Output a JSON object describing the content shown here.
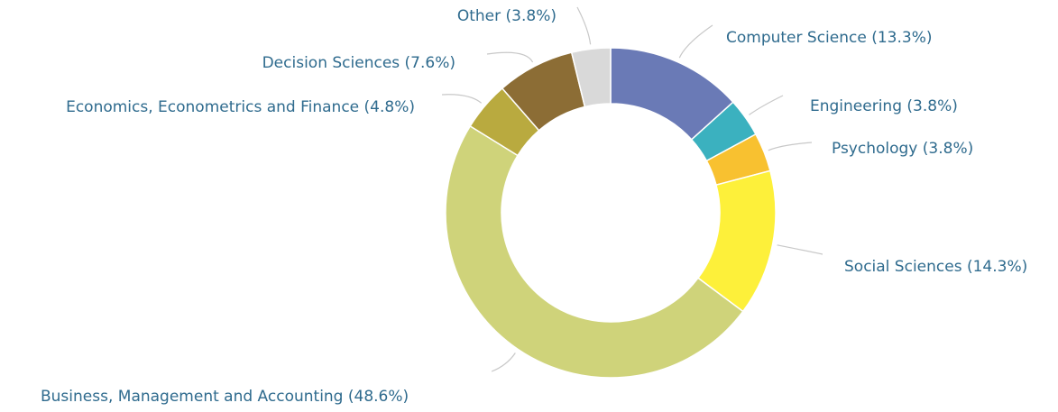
{
  "chart_data": {
    "type": "donut",
    "categories": [
      "Computer Science (13.3%)",
      "Engineering (3.8%)",
      "Psychology (3.8%)",
      "Social Sciences (14.3%)",
      "Business, Management and Accounting (48.6%)",
      "Economics, Econometrics and Finance (4.8%)",
      "Decision Sciences (7.6%)",
      "Other (3.8%)"
    ],
    "values": [
      13.3,
      3.8,
      3.8,
      14.3,
      48.6,
      4.8,
      7.6,
      3.8
    ],
    "colors": [
      "#6a7ab6",
      "#3bb1bf",
      "#f8c130",
      "#fdf03a",
      "#cfd37a",
      "#b9aa3f",
      "#8c6d35",
      "#d9d9d9"
    ]
  }
}
